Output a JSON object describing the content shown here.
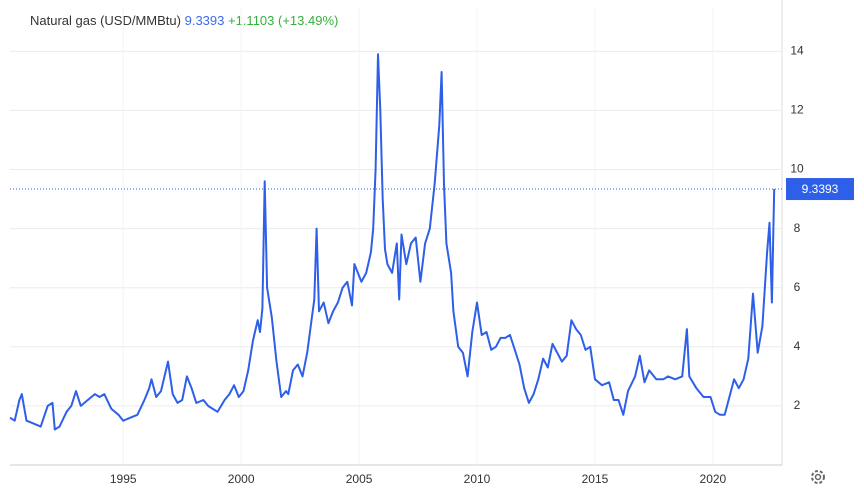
{
  "chart_data": {
    "type": "line",
    "title": "Natural gas (USD/MMBtu)",
    "price": "9.3393",
    "change": "+1.1103",
    "change_pct": "(+13.49%)",
    "x": [
      1990.2,
      1990.4,
      1990.6,
      1990.7,
      1990.9,
      1991.2,
      1991.5,
      1991.8,
      1992.0,
      1992.1,
      1992.3,
      1992.6,
      1992.8,
      1993.0,
      1993.2,
      1993.5,
      1993.8,
      1994.0,
      1994.2,
      1994.5,
      1994.8,
      1995.0,
      1995.3,
      1995.6,
      1995.9,
      1996.1,
      1996.2,
      1996.4,
      1996.6,
      1996.9,
      1997.1,
      1997.3,
      1997.5,
      1997.7,
      1997.9,
      1998.1,
      1998.4,
      1998.6,
      1998.8,
      1999.0,
      1999.3,
      1999.5,
      1999.7,
      1999.9,
      2000.1,
      2000.3,
      2000.5,
      2000.7,
      2000.8,
      2000.9,
      2001.0,
      2001.1,
      2001.3,
      2001.5,
      2001.7,
      2001.9,
      2002.0,
      2002.2,
      2002.4,
      2002.6,
      2002.8,
      2003.0,
      2003.1,
      2003.2,
      2003.3,
      2003.5,
      2003.7,
      2003.9,
      2004.1,
      2004.3,
      2004.5,
      2004.7,
      2004.8,
      2004.95,
      2005.1,
      2005.3,
      2005.5,
      2005.6,
      2005.7,
      2005.8,
      2005.9,
      2006.0,
      2006.1,
      2006.2,
      2006.4,
      2006.6,
      2006.7,
      2006.8,
      2007.0,
      2007.2,
      2007.4,
      2007.6,
      2007.8,
      2008.0,
      2008.2,
      2008.4,
      2008.5,
      2008.6,
      2008.7,
      2008.9,
      2009.0,
      2009.2,
      2009.4,
      2009.6,
      2009.8,
      2010.0,
      2010.2,
      2010.4,
      2010.6,
      2010.8,
      2011.0,
      2011.2,
      2011.4,
      2011.6,
      2011.8,
      2012.0,
      2012.2,
      2012.4,
      2012.6,
      2012.8,
      2013.0,
      2013.2,
      2013.4,
      2013.6,
      2013.8,
      2014.0,
      2014.2,
      2014.4,
      2014.6,
      2014.8,
      2015.0,
      2015.3,
      2015.6,
      2015.8,
      2016.0,
      2016.2,
      2016.4,
      2016.7,
      2016.9,
      2017.1,
      2017.3,
      2017.6,
      2017.9,
      2018.1,
      2018.4,
      2018.7,
      2018.9,
      2019.0,
      2019.3,
      2019.6,
      2019.9,
      2020.1,
      2020.3,
      2020.5,
      2020.7,
      2020.9,
      2021.1,
      2021.3,
      2021.5,
      2021.7,
      2021.9,
      2022.1,
      2022.3,
      2022.4,
      2022.5,
      2022.6
    ],
    "series": [
      {
        "name": "Natural gas (USD/MMBtu)",
        "color": "#2e5fe8",
        "values": [
          1.6,
          1.5,
          2.2,
          2.4,
          1.5,
          1.4,
          1.3,
          2.0,
          2.1,
          1.2,
          1.3,
          1.8,
          2.0,
          2.5,
          2.0,
          2.2,
          2.4,
          2.3,
          2.4,
          1.9,
          1.7,
          1.5,
          1.6,
          1.7,
          2.2,
          2.6,
          2.9,
          2.3,
          2.5,
          3.5,
          2.4,
          2.1,
          2.2,
          3.0,
          2.6,
          2.1,
          2.2,
          2.0,
          1.9,
          1.8,
          2.2,
          2.4,
          2.7,
          2.3,
          2.5,
          3.2,
          4.2,
          4.9,
          4.5,
          5.3,
          9.6,
          6.0,
          5.0,
          3.5,
          2.3,
          2.5,
          2.4,
          3.2,
          3.4,
          3.0,
          3.8,
          5.0,
          5.6,
          8.0,
          5.2,
          5.5,
          4.8,
          5.2,
          5.5,
          6.0,
          6.2,
          5.4,
          6.8,
          6.5,
          6.2,
          6.5,
          7.2,
          8.0,
          10.0,
          13.9,
          12.0,
          9.0,
          7.3,
          6.8,
          6.5,
          7.5,
          5.6,
          7.8,
          6.8,
          7.5,
          7.7,
          6.2,
          7.5,
          8.0,
          9.5,
          11.5,
          13.3,
          9.5,
          7.5,
          6.5,
          5.2,
          4.0,
          3.8,
          3.0,
          4.5,
          5.5,
          4.4,
          4.5,
          3.9,
          4.0,
          4.3,
          4.3,
          4.4,
          3.9,
          3.4,
          2.6,
          2.1,
          2.4,
          2.9,
          3.6,
          3.3,
          4.1,
          3.8,
          3.5,
          3.7,
          4.9,
          4.6,
          4.4,
          3.9,
          4.0,
          2.9,
          2.7,
          2.8,
          2.2,
          2.2,
          1.7,
          2.5,
          3.0,
          3.7,
          2.8,
          3.2,
          2.9,
          2.9,
          3.0,
          2.9,
          3.0,
          4.6,
          3.0,
          2.6,
          2.3,
          2.3,
          1.8,
          1.7,
          1.7,
          2.3,
          2.9,
          2.6,
          2.9,
          3.6,
          5.8,
          3.8,
          4.7,
          7.2,
          8.2,
          5.5,
          9.3393
        ]
      }
    ],
    "xlim": [
      1990.2,
      2022.93
    ],
    "xticks": [
      1995,
      2000,
      2005,
      2010,
      2015,
      2020
    ],
    "ylim": [
      0,
      15.5
    ],
    "yticks": [
      2,
      4,
      6,
      8,
      10,
      12,
      14
    ],
    "grid": true
  }
}
